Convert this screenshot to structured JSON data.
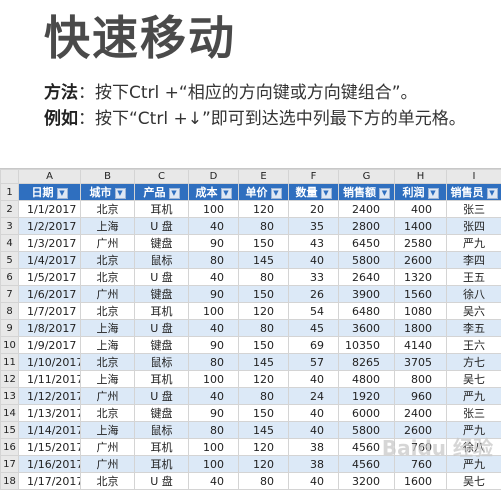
{
  "title": "快速移动",
  "method_label": "方法",
  "method_text": "：按下Ctrl +“相应的方向键或方向键组合”。",
  "example_label": "例如",
  "example_text": "：按下“Ctrl +↓”即可到达选中列最下方的单元格。",
  "sheet": {
    "col_letters": [
      "A",
      "B",
      "C",
      "D",
      "E",
      "F",
      "G",
      "H",
      "I"
    ],
    "row_numbers": [
      "1",
      "2",
      "3",
      "4",
      "5",
      "6",
      "7",
      "8",
      "9",
      "10",
      "11",
      "12",
      "13",
      "14",
      "15",
      "16",
      "17",
      "18"
    ],
    "headers": [
      "日期",
      "城市",
      "产品",
      "成本",
      "单价",
      "数量",
      "销售额",
      "利润",
      "销售员"
    ],
    "rows": [
      [
        "1/1/2017",
        "北京",
        "耳机",
        "100",
        "120",
        "20",
        "2400",
        "400",
        "张三"
      ],
      [
        "1/2/2017",
        "上海",
        "U 盘",
        "40",
        "80",
        "35",
        "2800",
        "1400",
        "张四"
      ],
      [
        "1/3/2017",
        "广州",
        "键盘",
        "90",
        "150",
        "43",
        "6450",
        "2580",
        "严九"
      ],
      [
        "1/4/2017",
        "北京",
        "鼠标",
        "80",
        "145",
        "40",
        "5800",
        "2600",
        "李四"
      ],
      [
        "1/5/2017",
        "北京",
        "U 盘",
        "40",
        "80",
        "33",
        "2640",
        "1320",
        "王五"
      ],
      [
        "1/6/2017",
        "广州",
        "键盘",
        "90",
        "150",
        "26",
        "3900",
        "1560",
        "徐八"
      ],
      [
        "1/7/2017",
        "北京",
        "耳机",
        "100",
        "120",
        "54",
        "6480",
        "1080",
        "吴六"
      ],
      [
        "1/8/2017",
        "上海",
        "U 盘",
        "40",
        "80",
        "45",
        "3600",
        "1800",
        "李五"
      ],
      [
        "1/9/2017",
        "上海",
        "键盘",
        "90",
        "150",
        "69",
        "10350",
        "4140",
        "王六"
      ],
      [
        "1/10/2017",
        "北京",
        "鼠标",
        "80",
        "145",
        "57",
        "8265",
        "3705",
        "方七"
      ],
      [
        "1/11/2017",
        "上海",
        "耳机",
        "100",
        "120",
        "40",
        "4800",
        "800",
        "吴七"
      ],
      [
        "1/12/2017",
        "广州",
        "U 盘",
        "40",
        "80",
        "24",
        "1920",
        "960",
        "严九"
      ],
      [
        "1/13/2017",
        "北京",
        "键盘",
        "90",
        "150",
        "40",
        "6000",
        "2400",
        "张三"
      ],
      [
        "1/14/2017",
        "上海",
        "鼠标",
        "80",
        "145",
        "40",
        "5800",
        "2600",
        "严九"
      ],
      [
        "1/15/2017",
        "广州",
        "耳机",
        "100",
        "120",
        "38",
        "4560",
        "760",
        "徐八"
      ],
      [
        "1/16/2017",
        "广州",
        "耳机",
        "100",
        "120",
        "38",
        "4560",
        "760",
        "严九"
      ],
      [
        "1/17/2017",
        "北京",
        "U 盘",
        "40",
        "80",
        "40",
        "3200",
        "1600",
        "吴七"
      ]
    ]
  },
  "watermark": "Baidu 经验"
}
